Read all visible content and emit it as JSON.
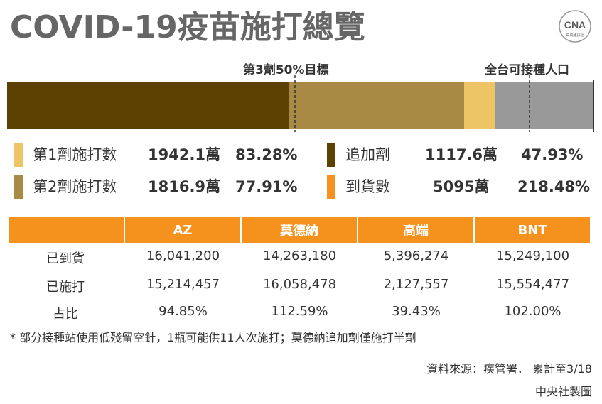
{
  "title": "COVID-19疫苗施打總覽",
  "logo": {
    "brand": "CNA",
    "subtext": "中央通訊社"
  },
  "bar": {
    "target_label": "第3劑50%目標",
    "population_label": "全台可接種人口"
  },
  "legend": [
    {
      "label": "第1劑施打數",
      "value": "1942.1萬",
      "percent": "83.28%",
      "color": "#EDC567"
    },
    {
      "label": "第2劑施打數",
      "value": "1816.9萬",
      "percent": "77.91%",
      "color": "#A98A44"
    },
    {
      "label": "追加劑",
      "value": "1117.6萬",
      "percent": "47.93%",
      "color": "#5C4102"
    },
    {
      "label": "到貨數",
      "value": "5095萬",
      "percent": "218.48%",
      "color": "#F5921E"
    }
  ],
  "table": {
    "headers": [
      "AZ",
      "莫德納",
      "高端",
      "BNT"
    ],
    "rows": [
      {
        "label": "已到貨",
        "cells": [
          "16,041,200",
          "14,263,180",
          "5,396,274",
          "15,249,100"
        ]
      },
      {
        "label": "已施打",
        "cells": [
          "15,214,457",
          "16,058,478",
          "2,127,557",
          "15,554,477"
        ]
      },
      {
        "label": "占比",
        "cells": [
          "94.85%",
          "112.59%",
          "39.43%",
          "102.00%"
        ]
      }
    ]
  },
  "note": "* 部分接種站使用低殘留空針，1瓶可能供11人次施打；莫德納追加劑僅施打半劑",
  "source": "資料來源：疾管署． 累計至3/18",
  "credit": "中央社製圖",
  "colors": {
    "dose1": "#EDC567",
    "dose2": "#A98A44",
    "booster": "#5C4102",
    "delivered": "#F5921E",
    "population": "#999999",
    "title": "#666666"
  },
  "chart_data": {
    "type": "bar",
    "orientation": "horizontal-stacked-progress",
    "categories": [
      "追加劑",
      "第2劑施打數",
      "第1劑施打數",
      "全台可接種人口"
    ],
    "values_percent_of_eligible_population": [
      47.93,
      77.91,
      83.28,
      100
    ],
    "markers": [
      {
        "label": "第3劑50%目標",
        "percent": 50
      },
      {
        "label": "全台可接種人口",
        "percent": 100
      }
    ],
    "xlim": [
      0,
      112
    ]
  }
}
